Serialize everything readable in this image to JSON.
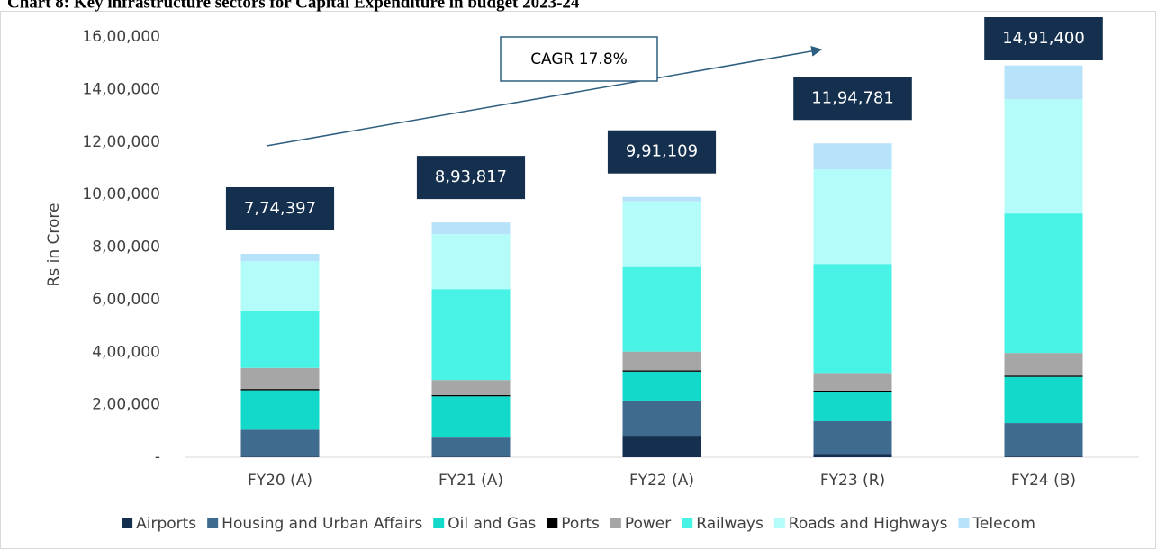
{
  "chart_data": {
    "type": "stacked_bar",
    "title": "Chart 8: Key infrastructure sectors for Capital Expenditure in budget 2023-24",
    "y_label": "Rs in Crore",
    "annotation": "CAGR 17.8%",
    "categories": [
      "FY20 (A)",
      "FY21 (A)",
      "FY22 (A)",
      "FY23 (R)",
      "FY24 (B)"
    ],
    "series": [
      {
        "name": "Airports",
        "color": "#15304f",
        "values": [
          2000,
          2000,
          82000,
          12000,
          3000
        ]
      },
      {
        "name": "Housing and Urban Affairs",
        "color": "#3f6b8f",
        "values": [
          103000,
          73000,
          134000,
          125000,
          127000
        ]
      },
      {
        "name": "Oil and Gas",
        "color": "#13d9cb",
        "values": [
          150000,
          157000,
          110000,
          112000,
          176000
        ]
      },
      {
        "name": "Ports",
        "color": "#000000",
        "values": [
          5000,
          5000,
          5000,
          5000,
          5000
        ]
      },
      {
        "name": "Power",
        "color": "#a6a6a6",
        "values": [
          80000,
          57000,
          71000,
          67000,
          86000
        ]
      },
      {
        "name": "Railways",
        "color": "#48f3e6",
        "values": [
          216000,
          346000,
          322000,
          415000,
          531000
        ]
      },
      {
        "name": "Roads and Highways",
        "color": "#b4fcf9",
        "values": [
          190000,
          209000,
          250000,
          360000,
          435000
        ]
      },
      {
        "name": "Telecom",
        "color": "#b6e3f9",
        "values": [
          28397,
          44817,
          17109,
          98781,
          128400
        ]
      }
    ],
    "totals": [
      {
        "value": 774397,
        "label": "7,74,397"
      },
      {
        "value": 893817,
        "label": "8,93,817"
      },
      {
        "value": 991109,
        "label": "9,91,109"
      },
      {
        "value": 1194781,
        "label": "11,94,781"
      },
      {
        "value": 1491400,
        "label": "14,91,400"
      }
    ],
    "total_color": "#15304f",
    "ylim": [
      0,
      1600000
    ],
    "yticks": [
      {
        "value": 0,
        "label": "-"
      },
      {
        "value": 200000,
        "label": "2,00,000"
      },
      {
        "value": 400000,
        "label": "4,00,000"
      },
      {
        "value": 600000,
        "label": "6,00,000"
      },
      {
        "value": 800000,
        "label": "8,00,000"
      },
      {
        "value": 1000000,
        "label": "10,00,000"
      },
      {
        "value": 1200000,
        "label": "12,00,000"
      },
      {
        "value": 1400000,
        "label": "14,00,000"
      },
      {
        "value": 1600000,
        "label": "16,00,000"
      }
    ],
    "legend": "bottom"
  }
}
